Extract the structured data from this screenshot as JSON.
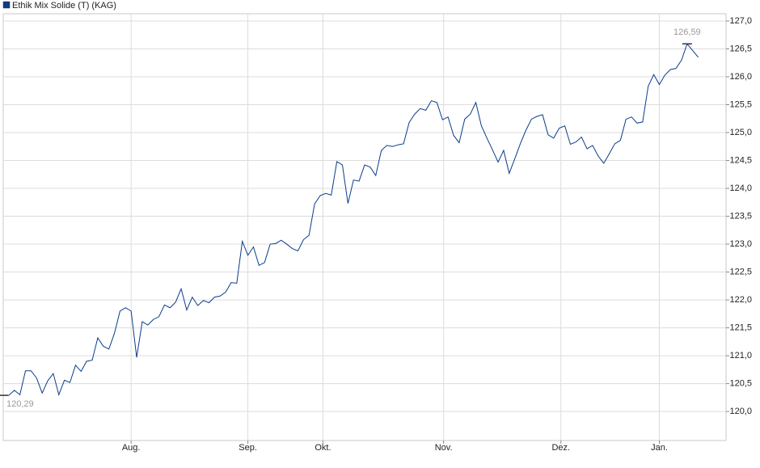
{
  "chart_data": {
    "type": "line",
    "series": [
      {
        "name": "Ethik Mix Solide (T) (KAG)",
        "color": "#0a3c8c",
        "values": [
          120.29,
          120.29,
          120.38,
          120.3,
          120.73,
          120.73,
          120.6,
          120.33,
          120.55,
          120.68,
          120.3,
          120.56,
          120.52,
          120.83,
          120.72,
          120.9,
          120.92,
          121.32,
          121.17,
          121.12,
          121.4,
          121.8,
          121.86,
          121.8,
          120.97,
          121.61,
          121.55,
          121.65,
          121.7,
          121.91,
          121.86,
          121.96,
          122.2,
          121.82,
          122.05,
          121.9,
          121.99,
          121.95,
          122.05,
          122.07,
          122.14,
          122.31,
          122.3,
          123.05,
          122.8,
          122.95,
          122.62,
          122.67,
          123.0,
          123.01,
          123.07,
          123.0,
          122.92,
          122.88,
          123.08,
          123.16,
          123.72,
          123.87,
          123.91,
          123.88,
          124.48,
          124.42,
          123.73,
          124.15,
          124.13,
          124.42,
          124.38,
          124.23,
          124.68,
          124.77,
          124.75,
          124.78,
          124.8,
          125.18,
          125.33,
          125.43,
          125.4,
          125.57,
          125.54,
          125.23,
          125.28,
          124.95,
          124.82,
          125.24,
          125.33,
          125.54,
          125.12,
          124.9,
          124.69,
          124.47,
          124.68,
          124.27,
          124.53,
          124.8,
          125.04,
          125.24,
          125.29,
          125.32,
          124.96,
          124.9,
          125.08,
          125.12,
          124.79,
          124.83,
          124.92,
          124.71,
          124.77,
          124.58,
          124.45,
          124.62,
          124.8,
          124.86,
          125.24,
          125.28,
          125.17,
          125.19,
          125.83,
          126.04,
          125.86,
          126.03,
          126.13,
          126.15,
          126.3,
          126.59,
          126.47,
          126.35
        ]
      }
    ],
    "xlim": [
      0,
      130
    ],
    "xticks": [
      {
        "value": 23,
        "label": "Aug."
      },
      {
        "value": 44,
        "label": "Sep."
      },
      {
        "value": 57.5,
        "label": "Okt."
      },
      {
        "value": 79.2,
        "label": "Nov."
      },
      {
        "value": 100.3,
        "label": "Dez."
      },
      {
        "value": 118,
        "label": "Jan."
      }
    ],
    "ylim": [
      119.48,
      127.13
    ],
    "yticks": [
      {
        "value": 120,
        "label": "120,0"
      },
      {
        "value": 120.5,
        "label": "120,5"
      },
      {
        "value": 121,
        "label": "121,0"
      },
      {
        "value": 121.5,
        "label": "121,5"
      },
      {
        "value": 122,
        "label": "122,0"
      },
      {
        "value": 122.5,
        "label": "122,5"
      },
      {
        "value": 123,
        "label": "123,0"
      },
      {
        "value": 123.5,
        "label": "123,5"
      },
      {
        "value": 124,
        "label": "124,0"
      },
      {
        "value": 124.5,
        "label": "124,5"
      },
      {
        "value": 125,
        "label": "125,0"
      },
      {
        "value": 125.5,
        "label": "125,5"
      },
      {
        "value": 126,
        "label": "126,0"
      },
      {
        "value": 126.5,
        "label": "126,5"
      },
      {
        "value": 127,
        "label": "127,0"
      }
    ],
    "annotations": [
      {
        "value": 126.59,
        "label": "126,59",
        "index": 123
      },
      {
        "value": 120.29,
        "label": "120,29",
        "index": 0
      }
    ],
    "grid": true,
    "legend": "top-left"
  }
}
